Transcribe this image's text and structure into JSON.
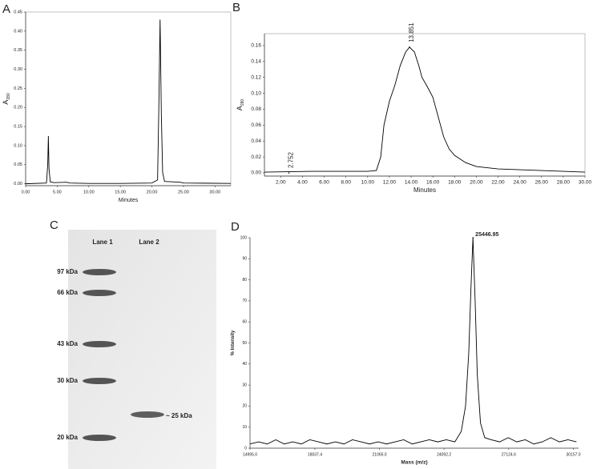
{
  "chart_data": [
    {
      "type": "line",
      "panel": "A",
      "x_label": "Minutes",
      "y_label": "A",
      "y_label_sub": "280",
      "color": "#000000",
      "x": [
        0,
        3.3,
        3.5,
        3.6,
        3.7,
        3.9,
        4.5,
        6.5,
        7,
        10,
        15,
        20,
        20.9,
        21.1,
        21.3,
        21.5,
        21.7,
        22,
        24.5,
        25,
        32.5
      ],
      "values": [
        0,
        0.002,
        0.05,
        0.125,
        0.04,
        0.005,
        0.003,
        0.004,
        0.002,
        0.001,
        0.001,
        0.002,
        0.01,
        0.2,
        0.43,
        0.18,
        0.03,
        0.006,
        0.004,
        0.002,
        0.001
      ],
      "xlim": [
        0,
        32.5
      ],
      "ylim": [
        -0.005,
        0.45
      ],
      "xticks": [
        {
          "value": 0,
          "label": "0.00"
        },
        {
          "value": 5,
          "label": "5.00"
        },
        {
          "value": 10,
          "label": "10.00"
        },
        {
          "value": 15,
          "label": "15.00"
        },
        {
          "value": 20,
          "label": "20.00"
        },
        {
          "value": 25,
          "label": "25.00"
        },
        {
          "value": 30,
          "label": "30.00"
        }
      ],
      "yticks": [
        {
          "value": 0,
          "label": "0.00"
        },
        {
          "value": 0.05,
          "label": "0.05"
        },
        {
          "value": 0.1,
          "label": "0.10"
        },
        {
          "value": 0.15,
          "label": "0.15"
        },
        {
          "value": 0.2,
          "label": "0.20"
        },
        {
          "value": 0.25,
          "label": "0.25"
        },
        {
          "value": 0.3,
          "label": "0.30"
        },
        {
          "value": 0.35,
          "label": "0.35"
        },
        {
          "value": 0.4,
          "label": "0.40"
        },
        {
          "value": 0.45,
          "label": "0.45"
        }
      ]
    },
    {
      "type": "line",
      "panel": "B",
      "x_label": "Minutes",
      "y_label": "A",
      "y_label_sub": "280",
      "color": "#000000",
      "x": [
        0.5,
        5,
        10,
        10.8,
        11.2,
        11.5,
        12,
        12.5,
        13,
        13.5,
        13.851,
        14.3,
        14.7,
        15,
        15.5,
        16,
        16.5,
        17,
        17.5,
        18,
        19,
        20,
        22,
        26,
        30
      ],
      "values": [
        0.001,
        0.002,
        0.002,
        0.003,
        0.02,
        0.06,
        0.09,
        0.11,
        0.135,
        0.152,
        0.158,
        0.152,
        0.135,
        0.12,
        0.108,
        0.095,
        0.07,
        0.045,
        0.03,
        0.022,
        0.013,
        0.008,
        0.005,
        0.003,
        0.001
      ],
      "xlim": [
        0.5,
        30
      ],
      "ylim": [
        -0.004,
        0.175
      ],
      "xticks": [
        {
          "value": 2,
          "label": "2.00"
        },
        {
          "value": 4,
          "label": "4.00"
        },
        {
          "value": 6,
          "label": "6.00"
        },
        {
          "value": 8,
          "label": "8.00"
        },
        {
          "value": 10,
          "label": "10.00"
        },
        {
          "value": 12,
          "label": "12.00"
        },
        {
          "value": 14,
          "label": "14.00"
        },
        {
          "value": 16,
          "label": "16.00"
        },
        {
          "value": 18,
          "label": "18.00"
        },
        {
          "value": 20,
          "label": "20.00"
        },
        {
          "value": 22,
          "label": "22.00"
        },
        {
          "value": 24,
          "label": "24.00"
        },
        {
          "value": 26,
          "label": "26.00"
        },
        {
          "value": 28,
          "label": "28.00"
        },
        {
          "value": 30,
          "label": "30.00"
        }
      ],
      "yticks": [
        {
          "value": 0,
          "label": "0.00"
        },
        {
          "value": 0.02,
          "label": "0.02"
        },
        {
          "value": 0.04,
          "label": "0.04"
        },
        {
          "value": 0.06,
          "label": "0.06"
        },
        {
          "value": 0.08,
          "label": "0.08"
        },
        {
          "value": 0.1,
          "label": "0.10"
        },
        {
          "value": 0.12,
          "label": "0.12"
        },
        {
          "value": 0.14,
          "label": "0.14"
        },
        {
          "value": 0.16,
          "label": "0.16"
        }
      ],
      "annotations": [
        {
          "label": "13.851",
          "x": 13.851,
          "y": 0.158
        },
        {
          "label": "2.752",
          "x": 2.752,
          "y": 0
        }
      ]
    },
    {
      "type": "line",
      "panel": "D",
      "x_label": "Mass (m/z)",
      "y_label": "% Intensity",
      "color": "#000000",
      "x": [
        14995,
        15400,
        15800,
        16200,
        16600,
        17000,
        17400,
        17800,
        18200,
        18600,
        19000,
        19400,
        19800,
        20200,
        20600,
        21000,
        21400,
        21800,
        22200,
        22600,
        23000,
        23400,
        23800,
        24200,
        24600,
        24900,
        25100,
        25250,
        25350,
        25446.95,
        25550,
        25650,
        25800,
        26000,
        26300,
        26700,
        27100,
        27500,
        27900,
        28300,
        28700,
        29100,
        29500,
        29900,
        30300
      ],
      "values": [
        2,
        3,
        2,
        4,
        2,
        3,
        2,
        4,
        3,
        2,
        3,
        2,
        4,
        3,
        2,
        3,
        2,
        3,
        4,
        2,
        3,
        4,
        3,
        4,
        3,
        8,
        20,
        45,
        75,
        100,
        70,
        35,
        12,
        5,
        4,
        3,
        5,
        3,
        4,
        2,
        3,
        5,
        3,
        4,
        3
      ],
      "xlim": [
        14995,
        30400
      ],
      "ylim": [
        0,
        100
      ],
      "xticks": [
        {
          "value": 14995,
          "label": "14995.0"
        },
        {
          "value": 18037.4,
          "label": "18037.4"
        },
        {
          "value": 21065,
          "label": "21065.0"
        },
        {
          "value": 24092.2,
          "label": "24092.2"
        },
        {
          "value": 27124.6,
          "label": "27124.6"
        },
        {
          "value": 30157,
          "label": "30157.0"
        }
      ],
      "yticks": [
        0,
        10,
        20,
        30,
        40,
        50,
        60,
        70,
        80,
        90,
        100
      ],
      "annotations": [
        {
          "label": "25446.95",
          "x": 25446.95,
          "y": 100
        }
      ]
    }
  ],
  "gel": {
    "panel": "C",
    "lanes": [
      "Lane 1",
      "Lane 2"
    ],
    "markers": [
      "97 kDa",
      "66 kDa",
      "43 kDa",
      "30 kDa",
      "20 kDa"
    ],
    "band_label": "~ 25 kDa"
  }
}
